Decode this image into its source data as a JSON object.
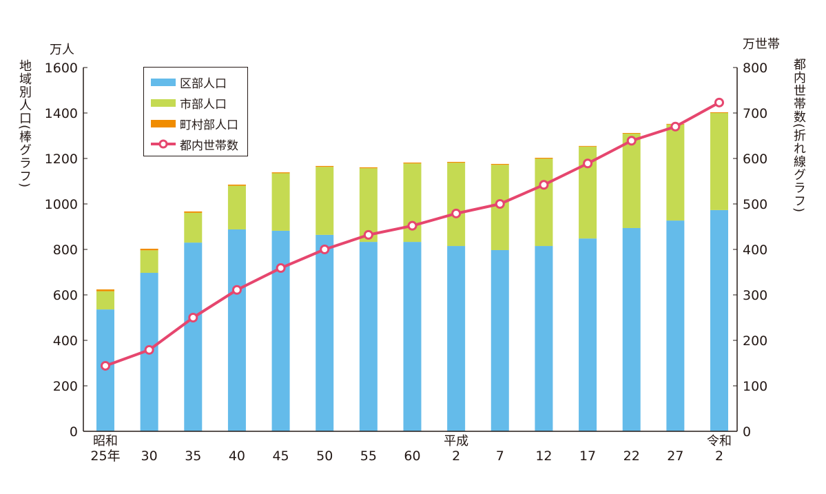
{
  "chart_data": {
    "type": "bar",
    "stacked": true,
    "categories": [
      {
        "line1": "昭和",
        "line2": "25年"
      },
      {
        "line1": "",
        "line2": "30"
      },
      {
        "line1": "",
        "line2": "35"
      },
      {
        "line1": "",
        "line2": "40"
      },
      {
        "line1": "",
        "line2": "45"
      },
      {
        "line1": "",
        "line2": "50"
      },
      {
        "line1": "",
        "line2": "55"
      },
      {
        "line1": "",
        "line2": "60"
      },
      {
        "line1": "平成",
        "line2": "2"
      },
      {
        "line1": "",
        "line2": "7"
      },
      {
        "line1": "",
        "line2": "12"
      },
      {
        "line1": "",
        "line2": "17"
      },
      {
        "line1": "",
        "line2": "22"
      },
      {
        "line1": "",
        "line2": "27"
      },
      {
        "line1": "令和",
        "line2": "2"
      }
    ],
    "series": [
      {
        "name": "区部人口",
        "type": "bar",
        "axis": "left",
        "color": "#64bbea",
        "values": [
          536,
          697,
          830,
          888,
          882,
          864,
          833,
          833,
          815,
          797,
          815,
          848,
          894,
          927,
          973
        ]
      },
      {
        "name": "市部人口",
        "type": "bar",
        "axis": "left",
        "color": "#c5da52",
        "values": [
          80,
          99,
          131,
          192,
          253,
          299,
          324,
          345,
          366,
          375,
          384,
          404,
          415,
          422,
          427
        ]
      },
      {
        "name": "町村部人口",
        "type": "bar",
        "axis": "left",
        "color": "#f08c00",
        "values": [
          8,
          7,
          6,
          5,
          4,
          4,
          4,
          4,
          4,
          4,
          4,
          3,
          3,
          3,
          3
        ]
      },
      {
        "name": "都内世帯数",
        "type": "line",
        "axis": "right",
        "color": "#e6466e",
        "values": [
          144,
          179,
          250,
          311,
          359,
          400,
          432,
          452,
          479,
          500,
          542,
          589,
          639,
          670,
          723
        ]
      }
    ],
    "left_axis": {
      "label": "地域別人口(棒グラフ)",
      "unit": "万人",
      "range": [
        0,
        1600
      ],
      "ticks": [
        "0",
        "200",
        "400",
        "600",
        "800",
        "1000",
        "1200",
        "1400",
        "1600"
      ]
    },
    "right_axis": {
      "label": "都内世帯数(折れ線グラフ)",
      "unit": "万世帯",
      "range": [
        0,
        800
      ],
      "ticks": [
        "0",
        "100",
        "200",
        "300",
        "400",
        "500",
        "600",
        "700",
        "800"
      ]
    },
    "grid": false,
    "legend_position": "top-left"
  }
}
